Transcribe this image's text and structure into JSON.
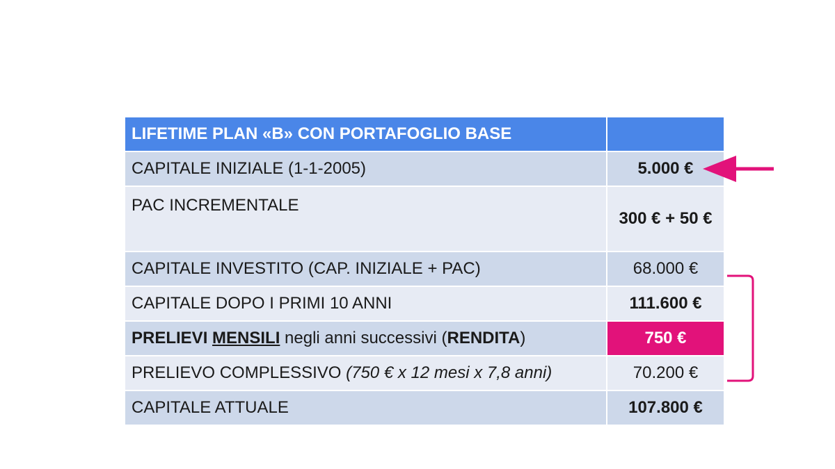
{
  "table": {
    "header": {
      "label": "LIFETIME PLAN «B» CON PORTAFOGLIO BASE",
      "value": ""
    },
    "rows": [
      {
        "label": "CAPITALE INIZIALE (1-1-2005)",
        "value": "5.000 €"
      },
      {
        "label": "PAC INCREMENTALE",
        "value": "300 € + 50 €"
      },
      {
        "label": "CAPITALE INVESTITO (CAP. INIZIALE + PAC)",
        "value": "68.000 €"
      },
      {
        "label": "CAPITALE DOPO I PRIMI 10 ANNI",
        "value": "111.600 €"
      },
      {
        "label_parts": {
          "prelievi": "PRELIEVI",
          "mensili": "MENSILI",
          "middle": " negli anni successivi (",
          "rendita": "RENDITA",
          "end": ")"
        },
        "value": "750 €"
      },
      {
        "label_parts": {
          "main": "PRELIEVO COMPLESSIVO ",
          "detail": "(750 € x 12 mesi x 7,8 anni)"
        },
        "value": "70.200 €"
      },
      {
        "label": "CAPITALE ATTUALE",
        "value": "107.800 €"
      }
    ]
  },
  "colors": {
    "header_bg": "#4a86e8",
    "row_dark": "#cdd8ea",
    "row_light": "#e7ebf4",
    "highlight": "#e2127a"
  },
  "annotations": {
    "arrow": "left-pointing-arrow-icon",
    "bracket": "right-bracket"
  }
}
